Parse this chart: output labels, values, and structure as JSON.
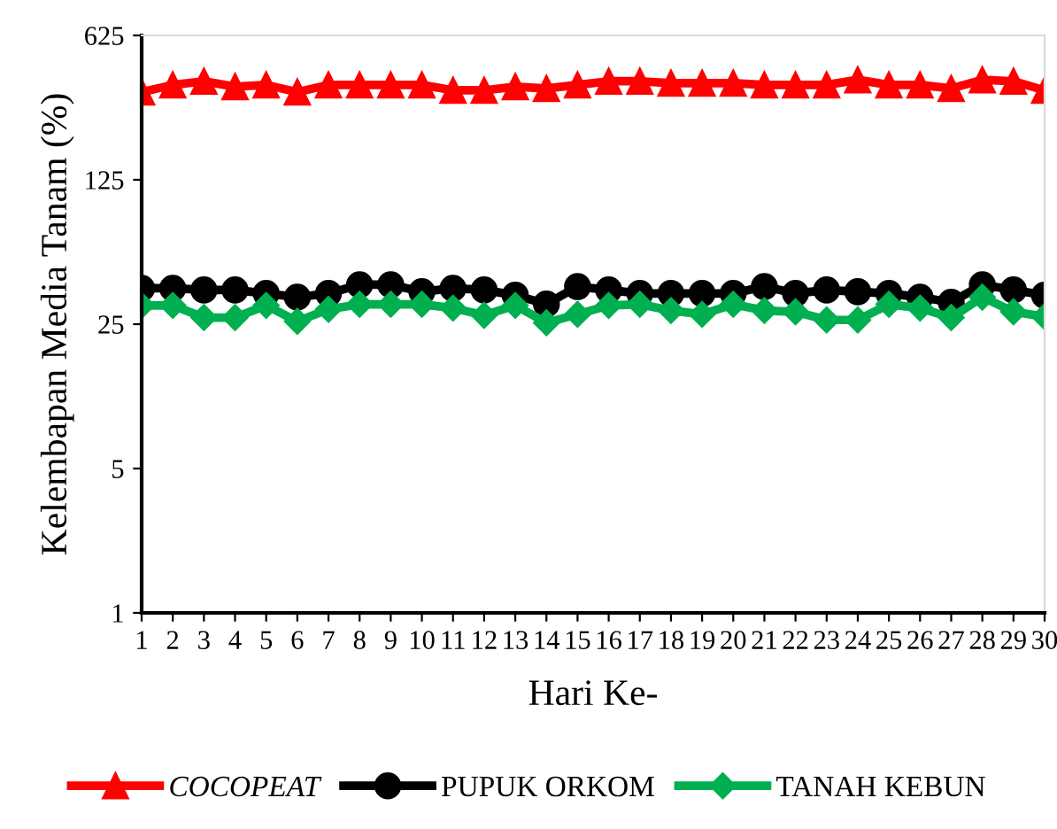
{
  "chart_data": {
    "type": "line",
    "xlabel": "Hari Ke-",
    "ylabel": "Kelembapan Media Tanam (%)",
    "categories": [
      "1",
      "2",
      "3",
      "4",
      "5",
      "6",
      "7",
      "8",
      "9",
      "10",
      "11",
      "12",
      "13",
      "14",
      "15",
      "16",
      "17",
      "18",
      "19",
      "20",
      "21",
      "22",
      "23",
      "24",
      "25",
      "26",
      "27",
      "28",
      "29",
      "30"
    ],
    "series": [
      {
        "name": "COCOPEAT",
        "color": "#ff0000",
        "marker": "triangle",
        "values": [
          332,
          360,
          375,
          353,
          360,
          332,
          360,
          360,
          360,
          360,
          339,
          339,
          353,
          346,
          360,
          375,
          375,
          367,
          367,
          367,
          360,
          360,
          360,
          381,
          360,
          360,
          346,
          381,
          375,
          339
        ]
      },
      {
        "name": "PUPUK ORKOM",
        "color": "#000000",
        "marker": "circle",
        "values": [
          37.3,
          37.3,
          36.6,
          36.6,
          35.2,
          33.8,
          35.2,
          38.8,
          38.8,
          35.9,
          37.3,
          36.6,
          34.5,
          31.3,
          38.0,
          36.6,
          35.2,
          35.2,
          35.2,
          35.2,
          38.0,
          35.2,
          36.6,
          35.9,
          35.2,
          33.8,
          31.9,
          38.8,
          36.6,
          34.5
        ]
      },
      {
        "name": "TANAH KEBUN",
        "color": "#00b050",
        "marker": "diamond",
        "values": [
          30.8,
          30.8,
          26.9,
          26.9,
          30.8,
          25.8,
          29.5,
          31.2,
          31.2,
          31.2,
          29.9,
          27.6,
          30.8,
          25.4,
          27.9,
          30.8,
          31.2,
          29.1,
          27.9,
          31.2,
          29.1,
          28.7,
          26.2,
          26.2,
          31.2,
          29.9,
          26.9,
          33.8,
          28.7,
          27.2
        ]
      }
    ],
    "log": "y",
    "ylim": [
      1,
      625
    ],
    "yticks": [
      1,
      5,
      25,
      125,
      625
    ],
    "grid": false,
    "legend": "bottom"
  }
}
